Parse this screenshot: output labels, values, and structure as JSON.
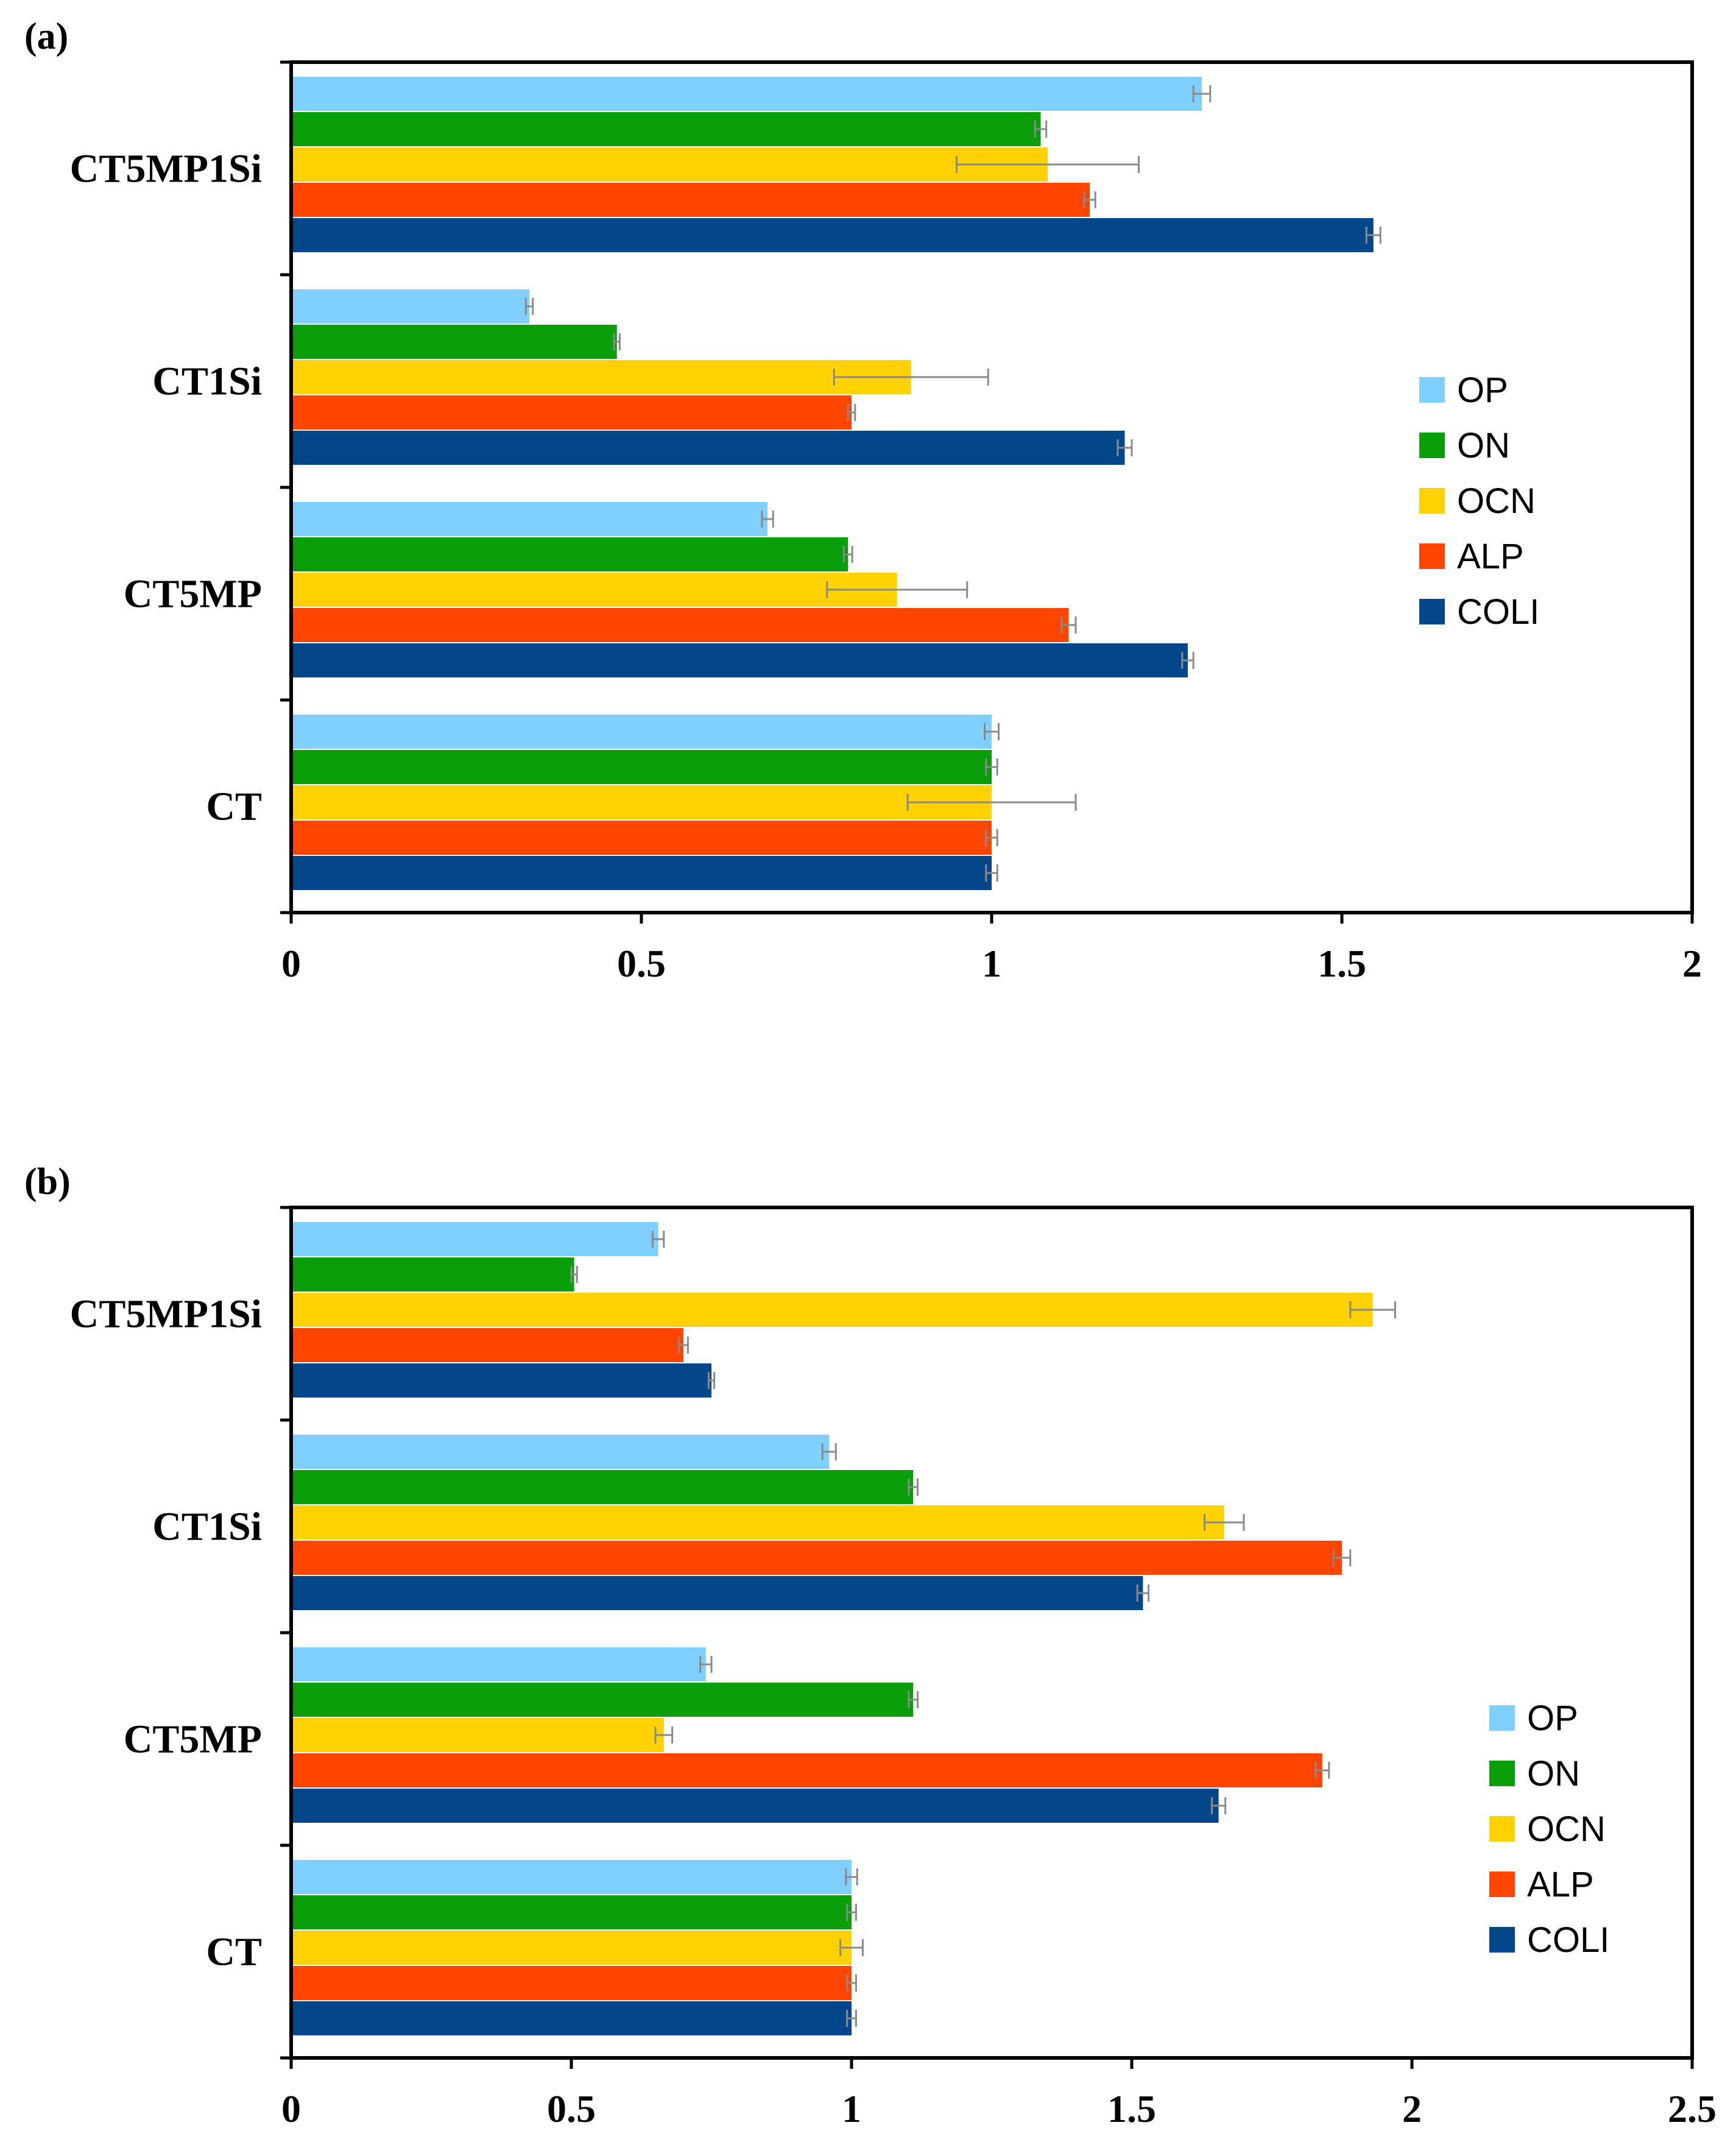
{
  "chart_data": [
    {
      "panel": "(a)",
      "type": "bar",
      "orientation": "horizontal",
      "categories": [
        "CT5MP1Si",
        "CT1Si",
        "CT5MP",
        "CT"
      ],
      "xlim": [
        0,
        2
      ],
      "xticks": [
        "0",
        "0.5",
        "1",
        "1.5",
        "2"
      ],
      "xtick_values": [
        0,
        0.5,
        1,
        1.5,
        2
      ],
      "legend_position": "right-middle",
      "series": [
        {
          "name": "OP",
          "color": "#7fcfff",
          "values": [
            1.3,
            0.34,
            0.68,
            1.0
          ],
          "errors": [
            0.012,
            0.005,
            0.008,
            0.01
          ]
        },
        {
          "name": "ON",
          "color": "#0a9e0a",
          "values": [
            1.07,
            0.465,
            0.795,
            1.0
          ],
          "errors": [
            0.008,
            0.004,
            0.006,
            0.008
          ]
        },
        {
          "name": "OCN",
          "color": "#ffd200",
          "values": [
            1.08,
            0.885,
            0.865,
            1.0
          ],
          "errors": [
            0.13,
            0.11,
            0.1,
            0.12
          ]
        },
        {
          "name": "ALP",
          "color": "#ff4500",
          "values": [
            1.14,
            0.8,
            1.11,
            1.0
          ],
          "errors": [
            0.008,
            0.005,
            0.01,
            0.008
          ]
        },
        {
          "name": "COLI",
          "color": "#03468a",
          "values": [
            1.545,
            1.19,
            1.28,
            1.0
          ],
          "errors": [
            0.01,
            0.01,
            0.008,
            0.008
          ]
        }
      ]
    },
    {
      "panel": "(b)",
      "type": "bar",
      "orientation": "horizontal",
      "categories": [
        "CT5MP1Si",
        "CT1Si",
        "CT5MP",
        "CT"
      ],
      "xlim": [
        0,
        2.5
      ],
      "xticks": [
        "0",
        "0.5",
        "1",
        "1.5",
        "2",
        "2.5"
      ],
      "xtick_values": [
        0,
        0.5,
        1,
        1.5,
        2,
        2.5
      ],
      "legend_position": "bottom-right",
      "series": [
        {
          "name": "OP",
          "color": "#7fcfff",
          "values": [
            0.655,
            0.96,
            0.74,
            1.0
          ],
          "errors": [
            0.01,
            0.012,
            0.01,
            0.01
          ]
        },
        {
          "name": "ON",
          "color": "#0a9e0a",
          "values": [
            0.505,
            1.11,
            1.11,
            1.0
          ],
          "errors": [
            0.005,
            0.008,
            0.008,
            0.008
          ]
        },
        {
          "name": "OCN",
          "color": "#ffd200",
          "values": [
            1.93,
            1.665,
            0.665,
            1.0
          ],
          "errors": [
            0.04,
            0.035,
            0.015,
            0.02
          ]
        },
        {
          "name": "ALP",
          "color": "#ff4500",
          "values": [
            0.7,
            1.875,
            1.84,
            1.0
          ],
          "errors": [
            0.008,
            0.015,
            0.012,
            0.008
          ]
        },
        {
          "name": "COLI",
          "color": "#03468a",
          "values": [
            0.75,
            1.52,
            1.655,
            1.0
          ],
          "errors": [
            0.005,
            0.01,
            0.012,
            0.008
          ]
        }
      ]
    }
  ]
}
